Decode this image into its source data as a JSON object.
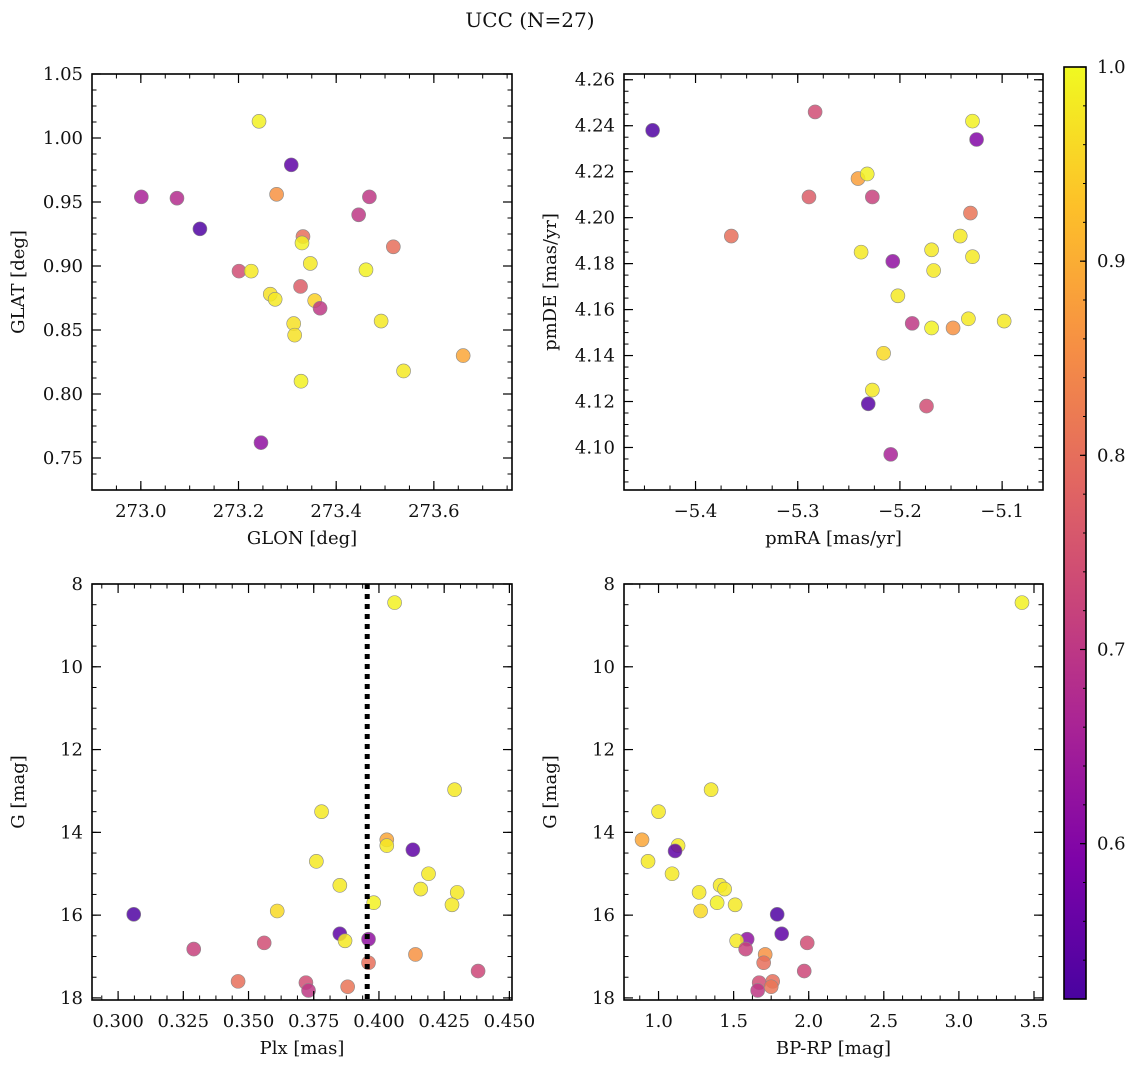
{
  "title": "UCC (N=27)",
  "colorbar": {
    "range": [
      0.52,
      1.0
    ],
    "ticks": [
      0.6,
      0.7,
      0.8,
      0.9,
      1.0
    ],
    "tick_labels": [
      "0.6",
      "0.7",
      "0.8",
      "0.9",
      "1.0"
    ],
    "colormap": "plasma"
  },
  "chart_data": [
    {
      "type": "scatter",
      "xlabel": "GLON [deg]",
      "ylabel": "GLAT [deg]",
      "xlim": [
        272.9,
        273.76
      ],
      "ylim": [
        0.725,
        1.05
      ],
      "xticks": [
        273.0,
        273.2,
        273.4,
        273.6
      ],
      "xtick_labels": [
        "273.0",
        "273.2",
        "273.4",
        "273.6"
      ],
      "yticks": [
        0.75,
        0.8,
        0.85,
        0.9,
        0.95,
        1.0,
        1.05
      ],
      "ytick_labels": [
        "0.75",
        "0.80",
        "0.85",
        "0.90",
        "0.95",
        "1.00",
        "1.05"
      ],
      "points": [
        {
          "x": 273.001,
          "y": 0.954,
          "c": 0.66
        },
        {
          "x": 273.074,
          "y": 0.953,
          "c": 0.68
        },
        {
          "x": 273.121,
          "y": 0.929,
          "c": 0.53
        },
        {
          "x": 273.201,
          "y": 0.896,
          "c": 0.74
        },
        {
          "x": 273.226,
          "y": 0.896,
          "c": 0.98
        },
        {
          "x": 273.242,
          "y": 1.013,
          "c": 0.99
        },
        {
          "x": 273.246,
          "y": 0.762,
          "c": 0.62
        },
        {
          "x": 273.265,
          "y": 0.878,
          "c": 0.97
        },
        {
          "x": 273.278,
          "y": 0.956,
          "c": 0.86
        },
        {
          "x": 273.275,
          "y": 0.874,
          "c": 0.98
        },
        {
          "x": 273.308,
          "y": 0.979,
          "c": 0.55
        },
        {
          "x": 273.313,
          "y": 0.855,
          "c": 0.97
        },
        {
          "x": 273.315,
          "y": 0.846,
          "c": 0.97
        },
        {
          "x": 273.327,
          "y": 0.884,
          "c": 0.77
        },
        {
          "x": 273.332,
          "y": 0.923,
          "c": 0.8
        },
        {
          "x": 273.33,
          "y": 0.918,
          "c": 0.99
        },
        {
          "x": 273.328,
          "y": 0.81,
          "c": 0.99
        },
        {
          "x": 273.347,
          "y": 0.902,
          "c": 0.98
        },
        {
          "x": 273.356,
          "y": 0.873,
          "c": 0.95
        },
        {
          "x": 273.367,
          "y": 0.867,
          "c": 0.7
        },
        {
          "x": 273.446,
          "y": 0.94,
          "c": 0.7
        },
        {
          "x": 273.461,
          "y": 0.897,
          "c": 0.99
        },
        {
          "x": 273.468,
          "y": 0.954,
          "c": 0.7
        },
        {
          "x": 273.492,
          "y": 0.857,
          "c": 0.98
        },
        {
          "x": 273.517,
          "y": 0.915,
          "c": 0.8
        },
        {
          "x": 273.538,
          "y": 0.818,
          "c": 0.98
        },
        {
          "x": 273.66,
          "y": 0.83,
          "c": 0.89
        }
      ]
    },
    {
      "type": "scatter",
      "xlabel": "pmRA [mas/yr]",
      "ylabel": "pmDE [mas/yr]",
      "xlim": [
        -5.47,
        -5.06
      ],
      "ylim": [
        4.0815,
        4.2625
      ],
      "xticks": [
        -5.4,
        -5.3,
        -5.2,
        -5.1
      ],
      "xtick_labels": [
        "−5.4",
        "−5.3",
        "−5.2",
        "−5.1"
      ],
      "yticks": [
        4.1,
        4.12,
        4.14,
        4.16,
        4.18,
        4.2,
        4.22,
        4.24,
        4.26
      ],
      "ytick_labels": [
        "4.10",
        "4.12",
        "4.14",
        "4.16",
        "4.18",
        "4.20",
        "4.22",
        "4.24",
        "4.26"
      ],
      "points": [
        {
          "x": -5.442,
          "y": 4.238,
          "c": 0.53
        },
        {
          "x": -5.365,
          "y": 4.192,
          "c": 0.8
        },
        {
          "x": -5.289,
          "y": 4.209,
          "c": 0.77
        },
        {
          "x": -5.283,
          "y": 4.246,
          "c": 0.74
        },
        {
          "x": -5.241,
          "y": 4.217,
          "c": 0.88
        },
        {
          "x": -5.238,
          "y": 4.185,
          "c": 0.98
        },
        {
          "x": -5.232,
          "y": 4.219,
          "c": 0.99
        },
        {
          "x": -5.231,
          "y": 4.119,
          "c": 0.54
        },
        {
          "x": -5.227,
          "y": 4.209,
          "c": 0.72
        },
        {
          "x": -5.227,
          "y": 4.125,
          "c": 0.98
        },
        {
          "x": -5.216,
          "y": 4.141,
          "c": 0.96
        },
        {
          "x": -5.209,
          "y": 4.097,
          "c": 0.66
        },
        {
          "x": -5.207,
          "y": 4.181,
          "c": 0.62
        },
        {
          "x": -5.202,
          "y": 4.166,
          "c": 0.98
        },
        {
          "x": -5.188,
          "y": 4.154,
          "c": 0.7
        },
        {
          "x": -5.174,
          "y": 4.118,
          "c": 0.74
        },
        {
          "x": -5.169,
          "y": 4.186,
          "c": 0.98
        },
        {
          "x": -5.169,
          "y": 4.152,
          "c": 0.99
        },
        {
          "x": -5.167,
          "y": 4.177,
          "c": 0.98
        },
        {
          "x": -5.148,
          "y": 4.152,
          "c": 0.86
        },
        {
          "x": -5.141,
          "y": 4.192,
          "c": 0.98
        },
        {
          "x": -5.133,
          "y": 4.156,
          "c": 0.98
        },
        {
          "x": -5.131,
          "y": 4.202,
          "c": 0.81
        },
        {
          "x": -5.129,
          "y": 4.242,
          "c": 0.99
        },
        {
          "x": -5.129,
          "y": 4.183,
          "c": 0.98
        },
        {
          "x": -5.125,
          "y": 4.234,
          "c": 0.6
        },
        {
          "x": -5.098,
          "y": 4.155,
          "c": 0.98
        }
      ]
    },
    {
      "type": "scatter",
      "xlabel": "Plx [mas]",
      "ylabel": "G [mag]",
      "xlim": [
        0.29,
        0.451
      ],
      "ylim": [
        18.05,
        8.0
      ],
      "y_inverted": true,
      "xticks": [
        0.3,
        0.325,
        0.35,
        0.375,
        0.4,
        0.425,
        0.45
      ],
      "xtick_labels": [
        "0.300",
        "0.325",
        "0.350",
        "0.375",
        "0.400",
        "0.425",
        "0.450"
      ],
      "yticks": [
        8,
        10,
        12,
        14,
        16,
        18
      ],
      "ytick_labels": [
        "8",
        "10",
        "12",
        "14",
        "16",
        "18"
      ],
      "vline": {
        "x": 0.3955,
        "style": "dotted"
      },
      "points": [
        {
          "x": 0.406,
          "y": 8.45,
          "c": 0.99
        },
        {
          "x": 0.429,
          "y": 12.97,
          "c": 0.98
        },
        {
          "x": 0.378,
          "y": 13.5,
          "c": 0.98
        },
        {
          "x": 0.403,
          "y": 14.18,
          "c": 0.89
        },
        {
          "x": 0.403,
          "y": 14.32,
          "c": 0.98
        },
        {
          "x": 0.413,
          "y": 14.42,
          "c": 0.55
        },
        {
          "x": 0.376,
          "y": 14.7,
          "c": 0.98
        },
        {
          "x": 0.419,
          "y": 15.0,
          "c": 0.98
        },
        {
          "x": 0.385,
          "y": 15.28,
          "c": 0.98
        },
        {
          "x": 0.416,
          "y": 15.37,
          "c": 0.98
        },
        {
          "x": 0.43,
          "y": 15.45,
          "c": 0.98
        },
        {
          "x": 0.398,
          "y": 15.7,
          "c": 0.99
        },
        {
          "x": 0.428,
          "y": 15.75,
          "c": 0.98
        },
        {
          "x": 0.361,
          "y": 15.9,
          "c": 0.96
        },
        {
          "x": 0.306,
          "y": 15.98,
          "c": 0.53
        },
        {
          "x": 0.385,
          "y": 16.45,
          "c": 0.55
        },
        {
          "x": 0.396,
          "y": 16.58,
          "c": 0.62
        },
        {
          "x": 0.387,
          "y": 16.62,
          "c": 0.98
        },
        {
          "x": 0.356,
          "y": 16.67,
          "c": 0.74
        },
        {
          "x": 0.329,
          "y": 16.82,
          "c": 0.72
        },
        {
          "x": 0.414,
          "y": 16.95,
          "c": 0.86
        },
        {
          "x": 0.396,
          "y": 17.15,
          "c": 0.8
        },
        {
          "x": 0.438,
          "y": 17.35,
          "c": 0.73
        },
        {
          "x": 0.346,
          "y": 17.6,
          "c": 0.8
        },
        {
          "x": 0.372,
          "y": 17.63,
          "c": 0.74
        },
        {
          "x": 0.388,
          "y": 17.73,
          "c": 0.81
        },
        {
          "x": 0.373,
          "y": 17.82,
          "c": 0.7
        }
      ]
    },
    {
      "type": "scatter",
      "xlabel": "BP-RP [mag]",
      "ylabel": "G [mag]",
      "xlim": [
        0.77,
        3.56
      ],
      "ylim": [
        18.05,
        8.0
      ],
      "y_inverted": true,
      "xticks": [
        1.0,
        1.5,
        2.0,
        2.5,
        3.0,
        3.5
      ],
      "xtick_labels": [
        "1.0",
        "1.5",
        "2.0",
        "2.5",
        "3.0",
        "3.5"
      ],
      "yticks": [
        8,
        10,
        12,
        14,
        16,
        18
      ],
      "ytick_labels": [
        "8",
        "10",
        "12",
        "14",
        "16",
        "18"
      ],
      "points": [
        {
          "x": 3.42,
          "y": 8.45,
          "c": 0.99
        },
        {
          "x": 1.35,
          "y": 12.97,
          "c": 0.98
        },
        {
          "x": 1.0,
          "y": 13.5,
          "c": 0.98
        },
        {
          "x": 0.89,
          "y": 14.18,
          "c": 0.89
        },
        {
          "x": 1.13,
          "y": 14.32,
          "c": 0.98
        },
        {
          "x": 1.11,
          "y": 14.45,
          "c": 0.55
        },
        {
          "x": 0.93,
          "y": 14.7,
          "c": 0.98
        },
        {
          "x": 1.09,
          "y": 15.0,
          "c": 0.98
        },
        {
          "x": 1.41,
          "y": 15.28,
          "c": 0.98
        },
        {
          "x": 1.44,
          "y": 15.37,
          "c": 0.98
        },
        {
          "x": 1.27,
          "y": 15.45,
          "c": 0.98
        },
        {
          "x": 1.39,
          "y": 15.7,
          "c": 0.99
        },
        {
          "x": 1.51,
          "y": 15.75,
          "c": 0.98
        },
        {
          "x": 1.28,
          "y": 15.9,
          "c": 0.96
        },
        {
          "x": 1.79,
          "y": 15.98,
          "c": 0.53
        },
        {
          "x": 1.82,
          "y": 16.45,
          "c": 0.55
        },
        {
          "x": 1.59,
          "y": 16.58,
          "c": 0.62
        },
        {
          "x": 1.52,
          "y": 16.62,
          "c": 0.98
        },
        {
          "x": 1.99,
          "y": 16.67,
          "c": 0.74
        },
        {
          "x": 1.58,
          "y": 16.82,
          "c": 0.72
        },
        {
          "x": 1.71,
          "y": 16.95,
          "c": 0.86
        },
        {
          "x": 1.7,
          "y": 17.15,
          "c": 0.8
        },
        {
          "x": 1.97,
          "y": 17.35,
          "c": 0.73
        },
        {
          "x": 1.76,
          "y": 17.6,
          "c": 0.8
        },
        {
          "x": 1.67,
          "y": 17.63,
          "c": 0.74
        },
        {
          "x": 1.75,
          "y": 17.73,
          "c": 0.81
        },
        {
          "x": 1.66,
          "y": 17.82,
          "c": 0.7
        }
      ]
    }
  ]
}
